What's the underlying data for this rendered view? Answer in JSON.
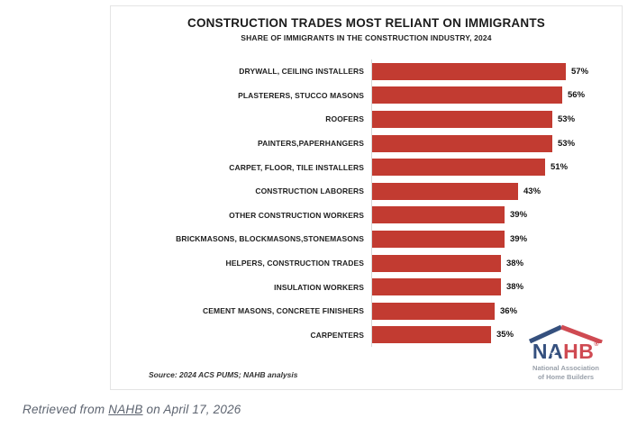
{
  "chart_data": {
    "type": "bar",
    "orientation": "horizontal",
    "title": "CONSTRUCTION TRADES MOST RELIANT ON IMMIGRANTS",
    "subtitle": "SHARE OF IMMIGRANTS IN THE CONSTRUCTION INDUSTRY, 2024",
    "source": "Source: 2024 ACS PUMS; NAHB analysis",
    "categories": [
      "DRYWALL, CEILING INSTALLERS",
      "PLASTERERS, STUCCO MASONS",
      "ROOFERS",
      "PAINTERS,PAPERHANGERS",
      "CARPET, FLOOR, TILE INSTALLERS",
      "CONSTRUCTION LABORERS",
      "OTHER CONSTRUCTION WORKERS",
      "BRICKMASONS, BLOCKMASONS,STONEMASONS",
      "HELPERS, CONSTRUCTION TRADES",
      "INSULATION WORKERS",
      "CEMENT MASONS, CONCRETE FINISHERS",
      "CARPENTERS"
    ],
    "values": [
      57,
      56,
      53,
      53,
      51,
      43,
      39,
      39,
      38,
      38,
      36,
      35
    ],
    "value_suffix": "%",
    "xlim": [
      0,
      73
    ],
    "bar_color": "#c23b31",
    "grid": false,
    "legend": false
  },
  "logo": {
    "word_part1": "NA",
    "word_part2": "HB",
    "reg_mark": "®",
    "star": "★",
    "caption_line1": "National Association",
    "caption_line2": "of Home Builders",
    "navy": "#35507e",
    "red": "#cf4a52"
  },
  "footer": {
    "prefix": "Retrieved from ",
    "link_label": "NAHB",
    "suffix": " on April 17, 2026"
  }
}
